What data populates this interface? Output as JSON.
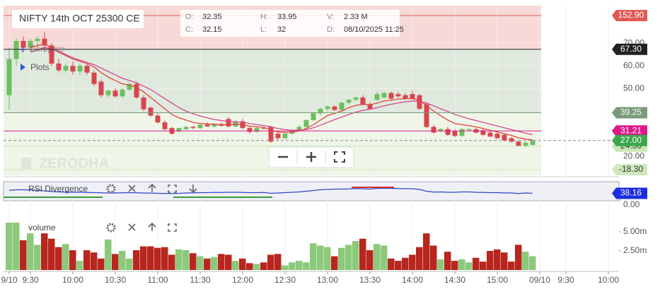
{
  "header": {
    "title": "NIFTY 14th OCT 25300 CE",
    "stats": [
      [
        "O:",
        "32.35"
      ],
      [
        "H:",
        "33.95"
      ],
      [
        "V:",
        "2.33 M"
      ],
      [
        "C:",
        "32.15"
      ],
      [
        "L:",
        "32"
      ],
      [
        "D:",
        "08/10/2025 11:25"
      ]
    ],
    "compare": "Compare",
    "plots": "Plots",
    "watermark": "ZERODHA"
  },
  "chart_data": [
    {
      "type": "candlestick",
      "open": [
        47,
        63,
        71,
        68,
        71,
        72,
        69,
        61,
        58,
        60,
        57.5,
        60,
        57,
        53,
        47,
        49,
        46.5,
        49.5,
        52,
        46,
        41.5,
        38,
        35,
        32.5,
        31,
        32,
        33,
        32.5,
        34,
        33.2,
        34.2,
        36.5,
        33.2,
        35.5,
        32.5,
        30.8,
        32.5,
        33,
        30,
        28,
        30,
        31.5,
        33,
        36,
        39,
        41,
        42,
        40.5,
        43.7,
        45,
        46,
        43,
        45,
        46,
        48,
        47.5,
        47,
        47.5,
        47,
        43,
        33,
        31,
        32,
        31,
        29,
        31.5,
        32,
        31.5,
        30.5,
        30,
        29.5,
        28,
        26.5,
        24.5,
        25
      ],
      "high": [
        68,
        72,
        73,
        72,
        73,
        75,
        70,
        63,
        61,
        62,
        61,
        61,
        58,
        54,
        49.5,
        50,
        50,
        52.5,
        53,
        47,
        42,
        39,
        36,
        33,
        32.5,
        33.5,
        33.5,
        34.5,
        35,
        34.5,
        35,
        37.5,
        36,
        36.5,
        33.5,
        33,
        33,
        33.5,
        31,
        31,
        32,
        34,
        36.5,
        39.5,
        41.5,
        42.5,
        42.5,
        44,
        45.5,
        46.5,
        47,
        44,
        48.5,
        48.5,
        48.5,
        48.5,
        48,
        49,
        47.5,
        44,
        34,
        32.5,
        33,
        32,
        32.5,
        32.5,
        32.5,
        32,
        31,
        30.5,
        30,
        28.5,
        27,
        26.5,
        27.5
      ],
      "low": [
        40.5,
        60,
        66,
        66,
        68,
        66,
        60,
        57,
        57,
        56,
        56,
        56,
        51,
        46,
        46,
        46,
        46,
        49,
        45.5,
        40,
        37.5,
        34.5,
        31.5,
        29.5,
        30.5,
        31.5,
        32,
        32,
        33,
        32.5,
        33,
        32.8,
        33,
        32,
        30,
        30.5,
        32,
        26,
        27,
        27.5,
        29.5,
        31,
        32.5,
        35.5,
        38,
        40,
        40,
        40,
        43,
        44.5,
        42.5,
        40.5,
        44.5,
        45.5,
        45,
        46,
        45,
        45,
        40.5,
        32.5,
        30,
        30.5,
        29,
        28.5,
        28.5,
        31,
        30,
        29,
        28.5,
        27.5,
        26.5,
        26,
        24.2,
        24,
        24.8
      ],
      "close": [
        63,
        71,
        68,
        71,
        72,
        69,
        61,
        58,
        60,
        57.5,
        60,
        57,
        52,
        47,
        49,
        46.5,
        49.5,
        52,
        46,
        40.8,
        38,
        35,
        32,
        30,
        32.5,
        33,
        32.5,
        34,
        33.2,
        34.2,
        33.5,
        33.2,
        35.5,
        32.5,
        30.8,
        32.5,
        32.3,
        26.5,
        28,
        30,
        31.5,
        33,
        36,
        39,
        41,
        42,
        40.5,
        43.7,
        45,
        46,
        43,
        41,
        47.5,
        48,
        45.5,
        46.5,
        45.5,
        45.5,
        41,
        33,
        30.5,
        32,
        29.5,
        29,
        32,
        32,
        30.5,
        29.5,
        28.7,
        28,
        27,
        26.5,
        24.5,
        26,
        27
      ],
      "up_color": "#6dbf62",
      "down_color": "#d8454e",
      "series": [
        {
          "color": "#e0443c",
          "values": [
            null,
            null,
            null,
            68,
            69,
            69.5,
            68,
            66,
            64.5,
            63,
            62,
            61,
            59.5,
            57,
            55,
            53.5,
            52,
            51.5,
            50.5,
            48.5,
            46,
            43.5,
            41,
            38.5,
            37,
            36,
            35,
            34.5,
            34.3,
            34.2,
            34,
            34,
            34.2,
            34,
            33.3,
            33,
            32.8,
            31.5,
            30.8,
            30.5,
            30.7,
            31.2,
            32.3,
            34,
            36,
            38,
            39,
            40,
            41.5,
            42.5,
            43,
            42.8,
            43.5,
            44.5,
            44.8,
            45.3,
            45.5,
            45.5,
            44.8,
            42.5,
            40,
            38,
            36,
            34.5,
            34,
            33.5,
            33,
            32.3,
            31.5,
            30.8,
            30,
            29.2,
            28.2,
            27.6,
            27.3
          ]
        },
        {
          "color": "#d6468e",
          "values": [
            null,
            null,
            null,
            66,
            67,
            68,
            67.5,
            66.5,
            65,
            63.5,
            62.5,
            61.5,
            60.5,
            59,
            57.5,
            56,
            54.5,
            53.5,
            52.5,
            51,
            49.5,
            47.5,
            45.5,
            43.5,
            41.5,
            40,
            38.8,
            37.8,
            37,
            36.3,
            35.8,
            35.4,
            35.2,
            35,
            34.5,
            34,
            33.6,
            33,
            32.3,
            31.8,
            31.5,
            31.5,
            31.8,
            32.6,
            33.8,
            35,
            36.2,
            37.3,
            38.5,
            39.5,
            40.3,
            40.8,
            41.5,
            42.3,
            43,
            43.6,
            44.1,
            44.4,
            44.3,
            43.5,
            42.3,
            41,
            39.8,
            38.5,
            37.5,
            36.6,
            35.8,
            35,
            34.2,
            33.4,
            32.6,
            31.8,
            31,
            30.2,
            29.6
          ]
        }
      ],
      "xlim": [
        -0.8,
        86.2
      ],
      "xticks": [
        {
          "value": 0,
          "label": "9/10"
        },
        {
          "value": 3,
          "label": "9:30"
        },
        {
          "value": 9,
          "label": "10:00"
        },
        {
          "value": 15,
          "label": "10:30"
        },
        {
          "value": 21,
          "label": "11:00"
        },
        {
          "value": 27,
          "label": "11:30"
        },
        {
          "value": 33,
          "label": "12:00"
        },
        {
          "value": 39,
          "label": "12:30"
        },
        {
          "value": 45,
          "label": "13:00"
        },
        {
          "value": 51,
          "label": "13:30"
        },
        {
          "value": 57,
          "label": "14:00"
        },
        {
          "value": 63,
          "label": "14:30"
        },
        {
          "value": 69,
          "label": "15:00"
        },
        {
          "value": 75,
          "label": "09/10"
        },
        {
          "value": 78.7,
          "label": "9:30"
        },
        {
          "value": 84.7,
          "label": "10:00"
        }
      ],
      "ylim": [
        11.6,
        86.6
      ],
      "yticks": [
        {
          "value": 70,
          "label": "70.00"
        },
        {
          "value": 60,
          "label": "60.00"
        },
        {
          "value": 50,
          "label": "50.00"
        },
        {
          "value": 20,
          "label": "20.00"
        }
      ],
      "grid": true,
      "levels": [
        {
          "value": 152.9,
          "label": "152.90",
          "color": "#e05a55"
        },
        {
          "value": 67.3,
          "label": "67.30",
          "color": "#222222"
        },
        {
          "value": 39.25,
          "label": "39.25",
          "color": "#7a9a78"
        },
        {
          "value": 31.21,
          "label": "31.21",
          "color": "#e0188a"
        },
        {
          "value": 24.5,
          "label": "24.50",
          "color": "#c9e6b4"
        },
        {
          "value": 27,
          "label": "27.00",
          "color": "#3aa84a",
          "dashed": true
        },
        {
          "value": -18.3,
          "label": "-18.30",
          "color": "#cfe8bc"
        }
      ]
    },
    {
      "type": "line",
      "title": "RSI Divergence",
      "color": "#2f46c4",
      "values": [
        55,
        58,
        58,
        57,
        55,
        52,
        48,
        46,
        45,
        44,
        44,
        43,
        42,
        41,
        40,
        40,
        41,
        42,
        41,
        40,
        39,
        38,
        37,
        37,
        38,
        40,
        41,
        42,
        42,
        43,
        43,
        44,
        44,
        43,
        42,
        42,
        43,
        38,
        40,
        42,
        44,
        46,
        50,
        54,
        58,
        60,
        62,
        62,
        63,
        65,
        64,
        62,
        66,
        67,
        66,
        65,
        64,
        64,
        60,
        50,
        45,
        46,
        44,
        44,
        46,
        46,
        44,
        43,
        42,
        42,
        40,
        40,
        37,
        40,
        38.16
      ],
      "ylim": [
        0,
        100
      ],
      "yticks": [
        {
          "value": 0,
          "label": "0.00"
        }
      ]
    },
    {
      "type": "bar",
      "title": "volume",
      "up_color": "#8cc97a",
      "down_color": "#b8261e",
      "values": [
        6.2,
        6.2,
        3.9,
        4.8,
        3.3,
        4.8,
        4.1,
        3.0,
        3.4,
        2.6,
        1.2,
        2.6,
        2.3,
        1.5,
        4.0,
        2.1,
        2.5,
        1.5,
        2.6,
        3.1,
        3.1,
        2.9,
        3.0,
        2.0,
        2.7,
        2.6,
        2.2,
        1.8,
        1.5,
        1.7,
        2.1,
        2.0,
        1.2,
        1.5,
        0.9,
        0.8,
        1.0,
        2.0,
        2.1,
        0.6,
        1.0,
        1.2,
        1.0,
        3.5,
        3.2,
        3.0,
        1.8,
        2.9,
        3.3,
        3.8,
        4.1,
        2.6,
        3.4,
        3.2,
        1.5,
        1.2,
        1.6,
        2.0,
        3.0,
        4.8,
        3.2,
        1.4,
        2.4,
        1.2,
        1.4,
        1.0,
        1.6,
        1.1,
        2.5,
        2.7,
        2.3,
        1.1,
        3.3,
        2.4,
        1.8
      ],
      "ylim": [
        0,
        7.59
      ],
      "yticks": [
        {
          "value": 5,
          "label": "5.00m"
        },
        {
          "value": 2.5,
          "label": "2.50m"
        }
      ]
    }
  ]
}
